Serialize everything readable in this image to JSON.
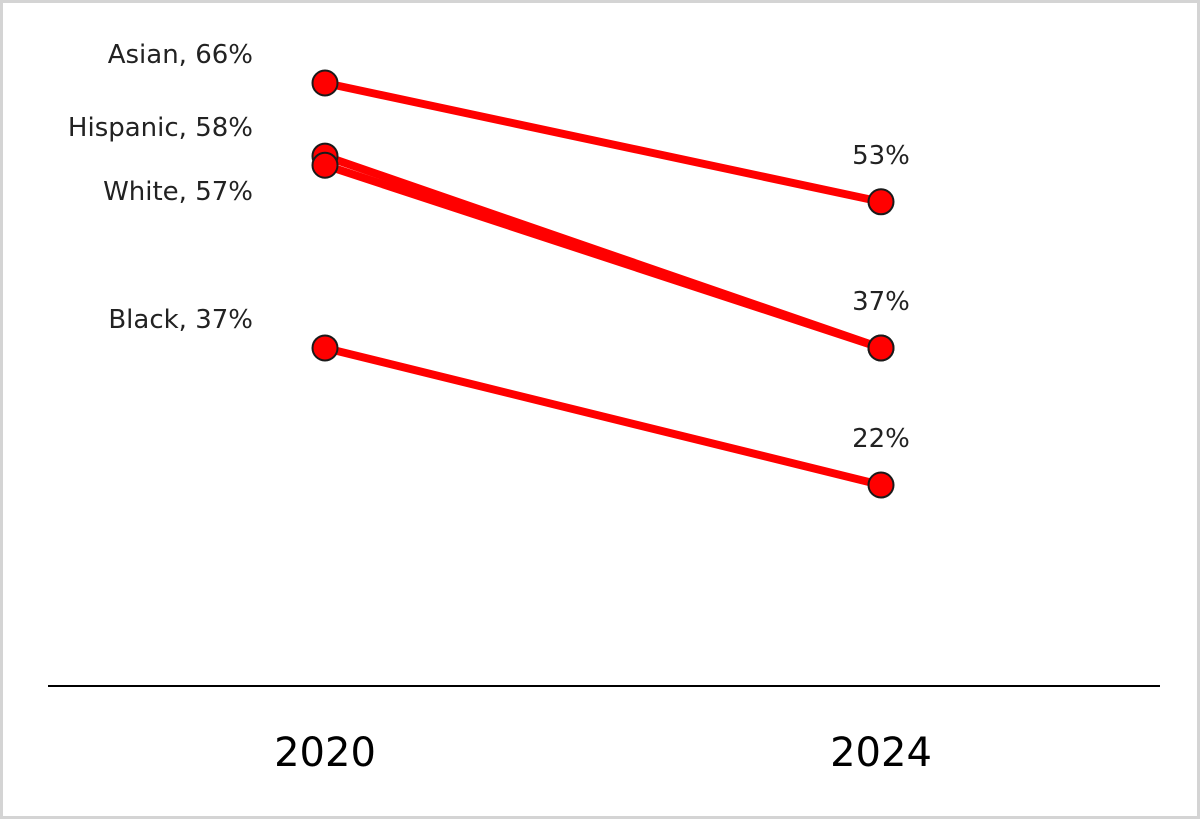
{
  "chart_data": {
    "type": "line",
    "x": [
      "2020",
      "2024"
    ],
    "series": [
      {
        "name": "Asian",
        "values": [
          66,
          53
        ],
        "start_label": "Asian, 66%",
        "end_label": "53%"
      },
      {
        "name": "Hispanic",
        "values": [
          58,
          37
        ],
        "start_label": "Hispanic, 58%",
        "end_label": ""
      },
      {
        "name": "White",
        "values": [
          57,
          37
        ],
        "start_label": "White, 57%",
        "end_label": "37%"
      },
      {
        "name": "Black",
        "values": [
          37,
          22
        ],
        "start_label": "Black, 37%",
        "end_label": "22%"
      }
    ],
    "title": "",
    "xlabel": "",
    "ylabel": "",
    "ylim": [
      0,
      66
    ],
    "grid": false,
    "legend": "none",
    "colors": {
      "line": "#ff0000",
      "marker_fill": "#ff0000",
      "marker_stroke": "#1a1a1a",
      "axis": "#000000"
    }
  }
}
